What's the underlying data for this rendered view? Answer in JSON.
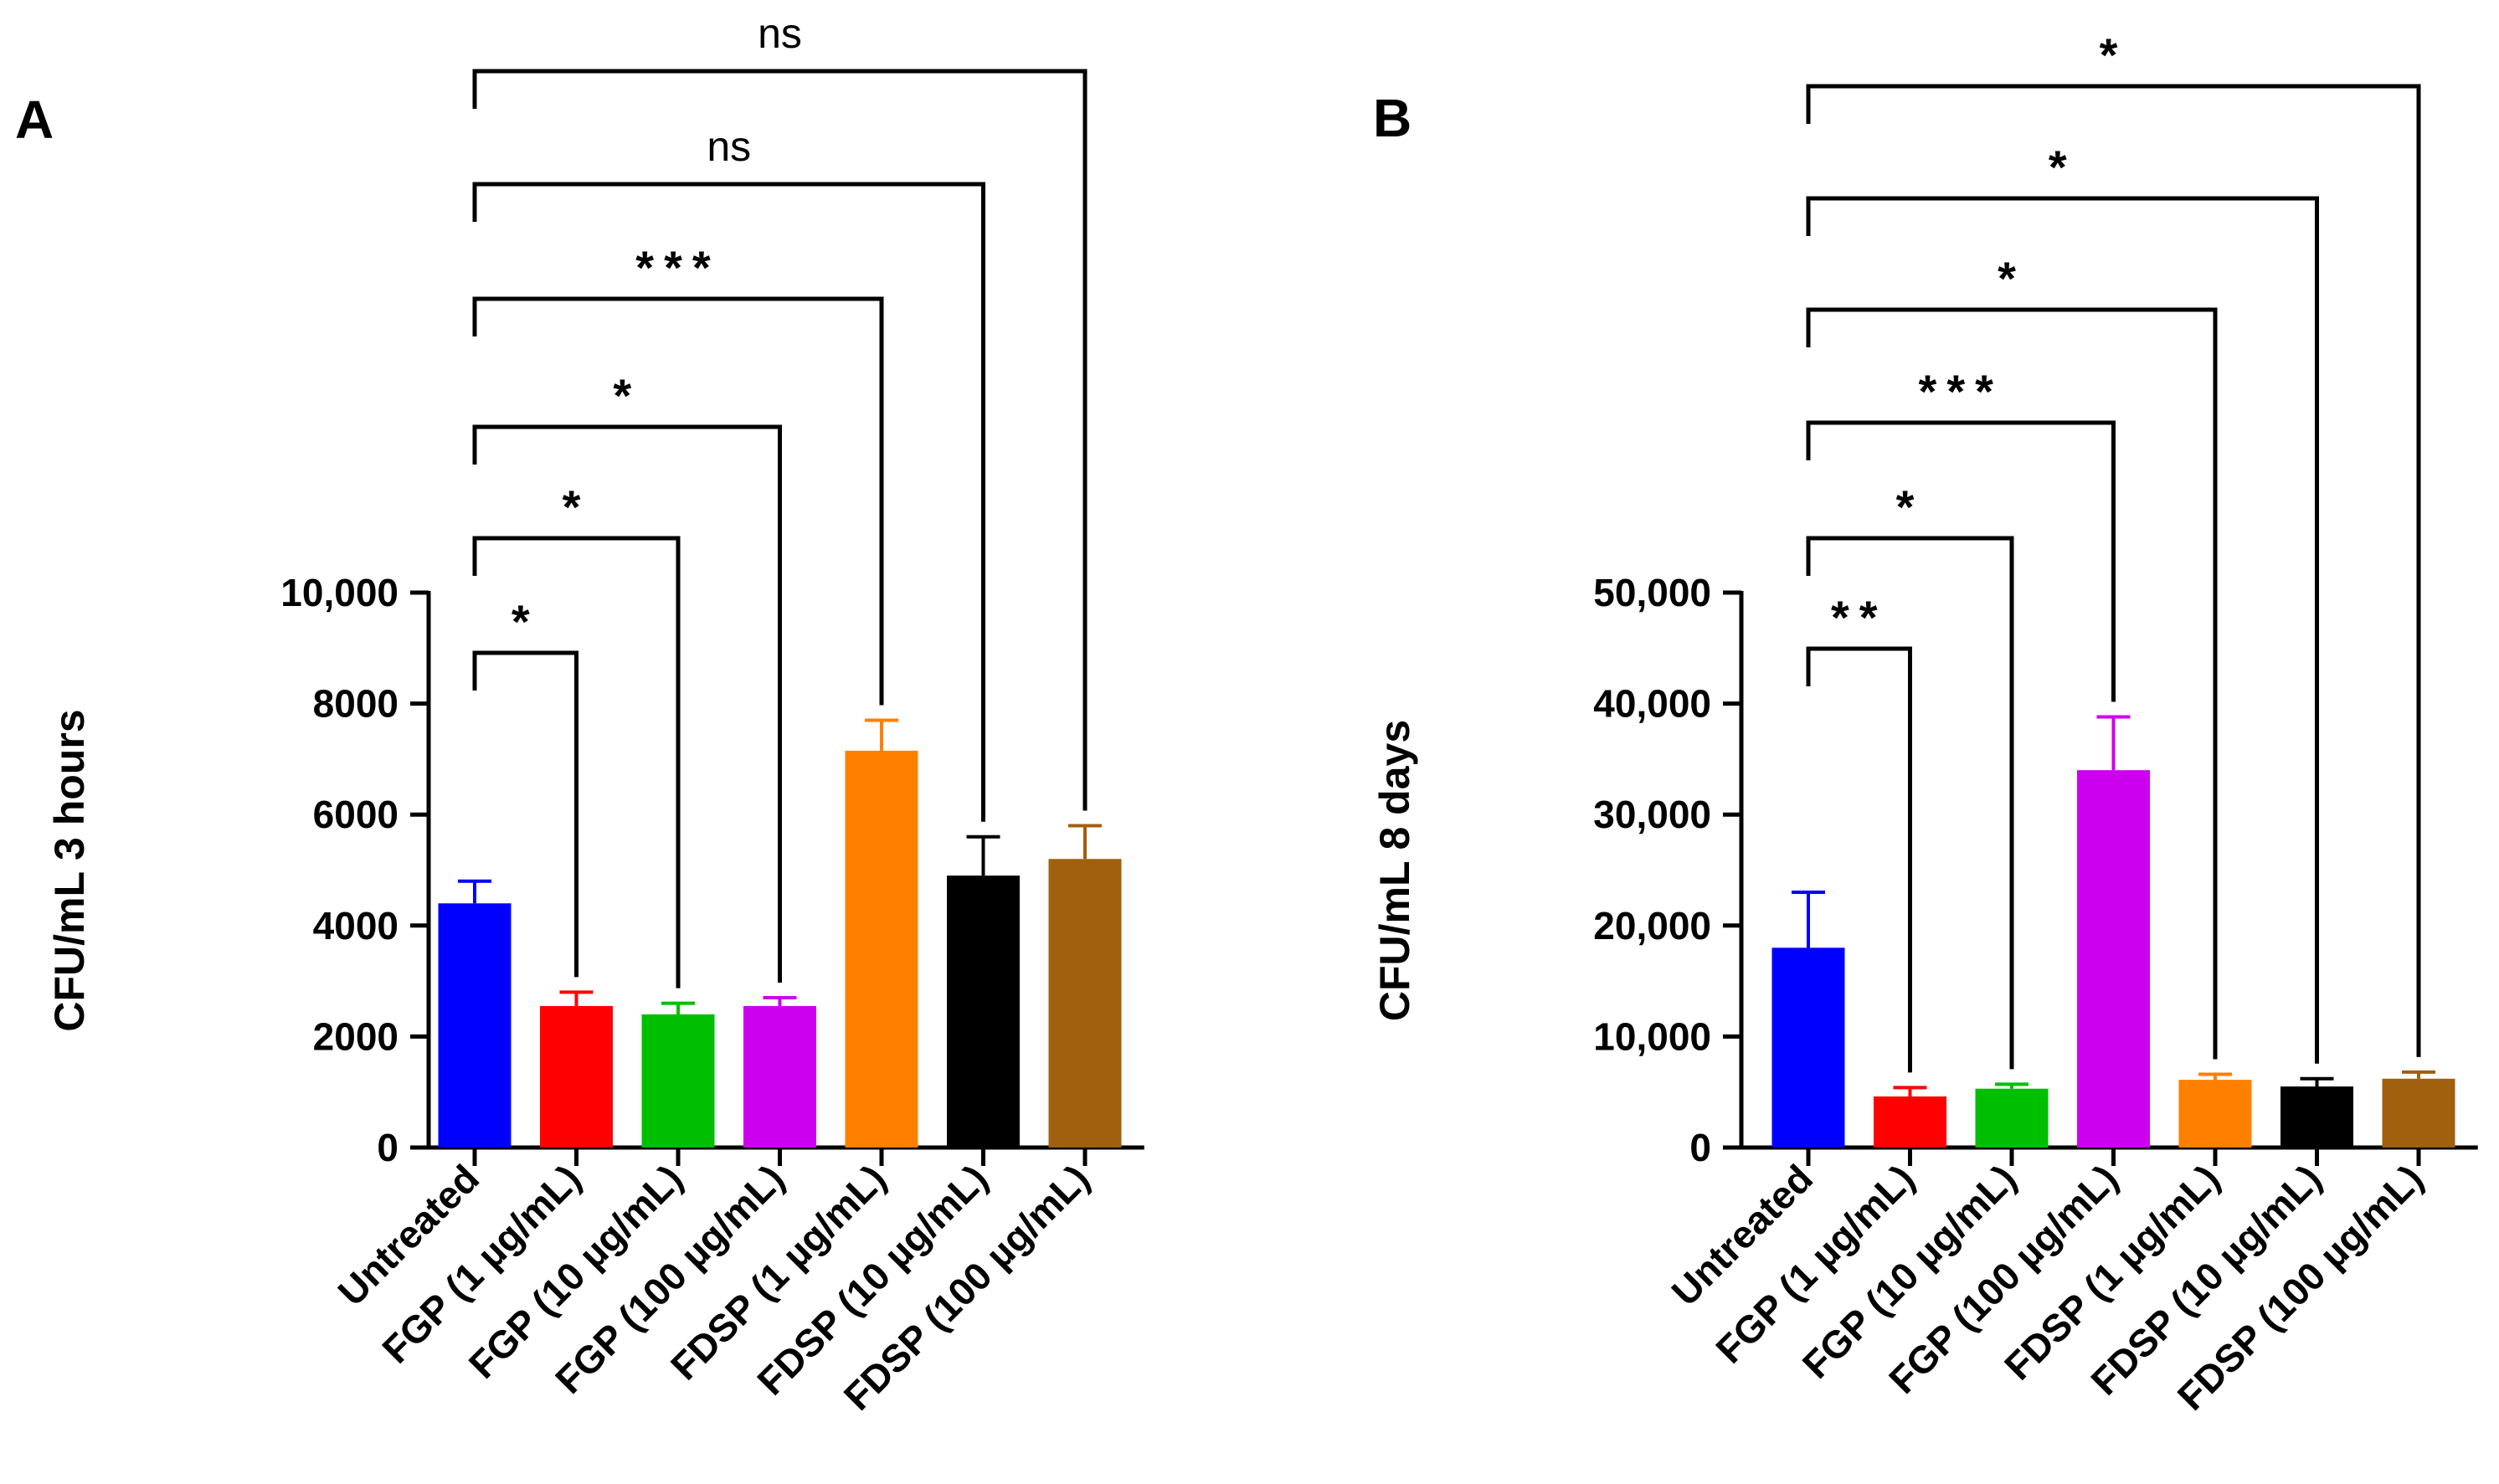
{
  "chart_data": [
    {
      "type": "bar",
      "panel_label": "A",
      "ylabel": "CFU/mL 3 hours",
      "ylim": [
        0,
        10000
      ],
      "yticks": [
        0,
        2000,
        4000,
        6000,
        8000,
        10000
      ],
      "ytick_labels": [
        "0",
        "2000",
        "4000",
        "6000",
        "8000",
        "10,000"
      ],
      "categories": [
        "Untreated",
        "FGP (1 µg/mL)",
        "FGP (10 µg/mL)",
        "FGP (100 µg/mL)",
        "FDSP (1 µg/mL)",
        "FDSP (10 µg/mL)",
        "FDSP (100 µg/mL)"
      ],
      "values": [
        4400,
        2550,
        2400,
        2550,
        7150,
        4900,
        5200
      ],
      "errors": [
        400,
        250,
        200,
        150,
        550,
        700,
        600
      ],
      "colors": [
        "#0000ff",
        "#ff0000",
        "#00bf00",
        "#cc00ee",
        "#ff8000",
        "#000000",
        "#a0600d"
      ],
      "comparisons": [
        {
          "from": 0,
          "to": 1,
          "label": "*"
        },
        {
          "from": 0,
          "to": 2,
          "label": "*"
        },
        {
          "from": 0,
          "to": 3,
          "label": "*"
        },
        {
          "from": 0,
          "to": 4,
          "label": "***"
        },
        {
          "from": 0,
          "to": 5,
          "label": "ns"
        },
        {
          "from": 0,
          "to": 6,
          "label": "ns"
        }
      ]
    },
    {
      "type": "bar",
      "panel_label": "B",
      "ylabel": "CFU/mL 8 days",
      "ylim": [
        0,
        50000
      ],
      "yticks": [
        0,
        10000,
        20000,
        30000,
        40000,
        50000
      ],
      "ytick_labels": [
        "0",
        "10,000",
        "20,000",
        "30,000",
        "40,000",
        "50,000"
      ],
      "categories": [
        "Untreated",
        "FGP (1 µg/mL)",
        "FGP (10 µg/mL)",
        "FGP (100 µg/mL)",
        "FDSP (1 µg/mL)",
        "FDSP (10 µg/mL)",
        "FDSP (100 µg/mL)"
      ],
      "values": [
        18000,
        4600,
        5300,
        34000,
        6100,
        5500,
        6200
      ],
      "errors": [
        5000,
        800,
        400,
        4800,
        500,
        700,
        600
      ],
      "colors": [
        "#0000ff",
        "#ff0000",
        "#00bf00",
        "#cc00ee",
        "#ff8000",
        "#000000",
        "#a0600d"
      ],
      "comparisons": [
        {
          "from": 0,
          "to": 1,
          "label": "**"
        },
        {
          "from": 0,
          "to": 2,
          "label": "*"
        },
        {
          "from": 0,
          "to": 3,
          "label": "***"
        },
        {
          "from": 0,
          "to": 4,
          "label": "*"
        },
        {
          "from": 0,
          "to": 5,
          "label": "*"
        },
        {
          "from": 0,
          "to": 6,
          "label": "*"
        }
      ]
    }
  ]
}
